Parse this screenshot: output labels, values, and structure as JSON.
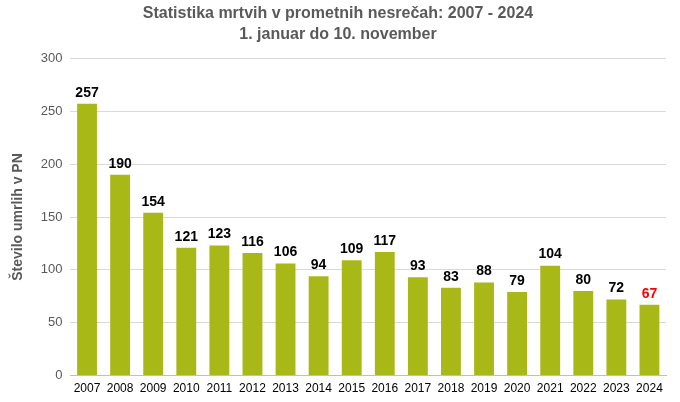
{
  "chart_data": {
    "type": "bar",
    "title": "Statistika mrtvih v prometnih nesrečah: 2007 - 2024",
    "subtitle": "1. januar do 10. november",
    "y_label": "Število umrlih v PN",
    "categories": [
      "2007",
      "2008",
      "2009",
      "2010",
      "2011",
      "2012",
      "2013",
      "2014",
      "2015",
      "2016",
      "2017",
      "2018",
      "2019",
      "2020",
      "2021",
      "2022",
      "2023",
      "2024"
    ],
    "values": [
      257,
      190,
      154,
      121,
      123,
      116,
      106,
      94,
      109,
      117,
      93,
      83,
      88,
      79,
      104,
      80,
      72,
      67
    ],
    "color": "#a8b817",
    "ylim": [
      0,
      300
    ],
    "yticks": [
      0,
      50,
      100,
      150,
      200,
      250,
      300
    ],
    "grid": true,
    "data_labels": true
  }
}
